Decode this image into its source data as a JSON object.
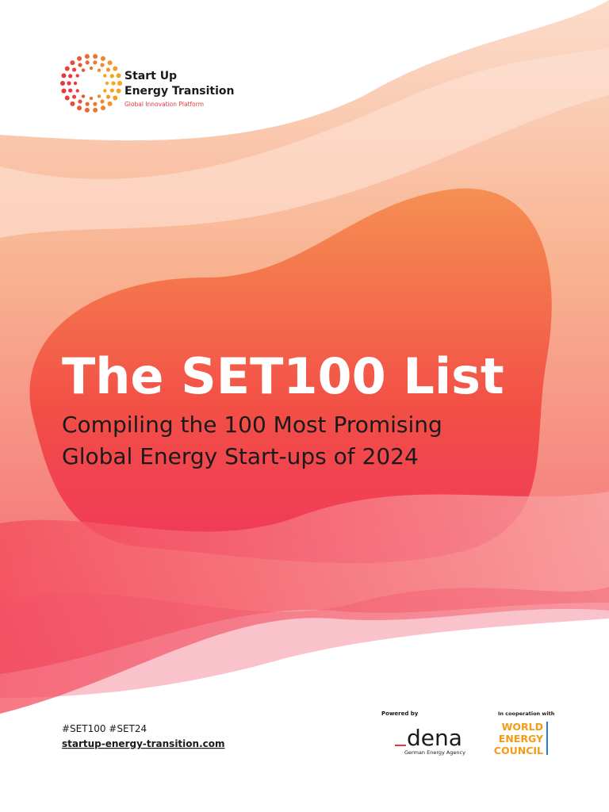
{
  "logo": {
    "line1": "Start Up",
    "line2": "Energy Transition",
    "tagline": "Global Innovation Platform"
  },
  "title": "The SET100 List",
  "subtitle": [
    "Compiling the 100 Most Promising",
    "Global Energy Start-ups of 2024"
  ],
  "footer": {
    "hashtags": "#SET100 #SET24",
    "url": "startup-energy-transition.com"
  },
  "powered": {
    "label": "Powered by",
    "name": "dena",
    "description": "German Energy Agency"
  },
  "cooperation": {
    "label": "In cooperation with",
    "lines": [
      "WORLD",
      "ENERGY",
      "COUNCIL"
    ]
  }
}
